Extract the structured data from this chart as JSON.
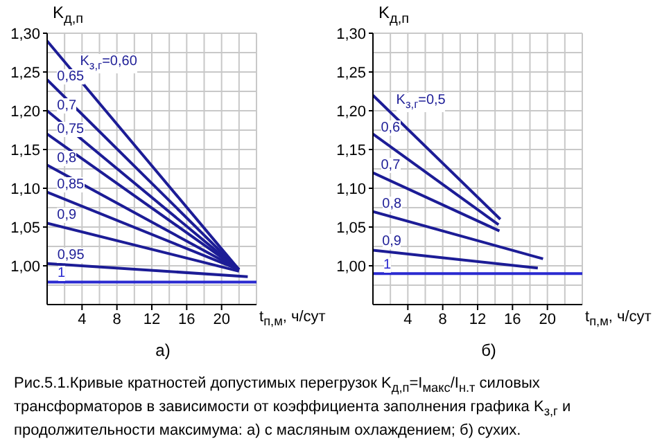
{
  "chart_data": [
    {
      "type": "line",
      "title": "а)",
      "xlabel": "t$_{п,м}$, ч/сут",
      "ylabel": "K$_{д,п}$",
      "xlim": [
        0,
        24
      ],
      "ylim": [
        0.95,
        1.3
      ],
      "xticks": [
        4,
        8,
        12,
        16,
        20
      ],
      "yticks": [
        {
          "value": 1.0,
          "label": "1,00"
        },
        {
          "value": 1.05,
          "label": "1,05"
        },
        {
          "value": 1.1,
          "label": "1,10"
        },
        {
          "value": 1.15,
          "label": "1,15"
        },
        {
          "value": 1.2,
          "label": "1,20"
        },
        {
          "value": 1.25,
          "label": "1,25"
        },
        {
          "value": 1.3,
          "label": "1,30"
        }
      ],
      "grid": true,
      "series": [
        {
          "name": "K$_{з,г}$=0,60",
          "color": "#1c1c96",
          "x": [
            0,
            22
          ],
          "values": [
            1.29,
            0.995
          ]
        },
        {
          "name": "0,65",
          "color": "#1c1c96",
          "x": [
            0,
            22
          ],
          "values": [
            1.24,
            0.995
          ]
        },
        {
          "name": "0,7",
          "color": "#1c1c96",
          "x": [
            0,
            22
          ],
          "values": [
            1.2,
            0.995
          ]
        },
        {
          "name": "0,75",
          "color": "#1c1c96",
          "x": [
            0,
            22
          ],
          "values": [
            1.17,
            0.995
          ]
        },
        {
          "name": "0,8",
          "color": "#1c1c96",
          "x": [
            0,
            22
          ],
          "values": [
            1.13,
            0.995
          ]
        },
        {
          "name": "0,85",
          "color": "#1c1c96",
          "x": [
            0,
            22
          ],
          "values": [
            1.095,
            0.995
          ]
        },
        {
          "name": "0,9",
          "color": "#1c1c96",
          "x": [
            0,
            22
          ],
          "values": [
            1.055,
            0.993
          ]
        },
        {
          "name": "0,95",
          "color": "#1c1c96",
          "x": [
            0,
            23
          ],
          "values": [
            1.003,
            0.986
          ]
        },
        {
          "name": "1",
          "color": "#2a2ad0",
          "x": [
            0,
            24
          ],
          "values": [
            0.979,
            0.979
          ]
        }
      ],
      "annotations": [
        "Рис.5.1.Кривые кратностей допустимых перегрузок K$_{д,п}$=I$_{макс}$/I$_{н.т}$ силовых трансформаторов в зависимости от коэффициента заполнения графика K$_{з,г}$ и продолжительности максимума: а) с масляным охлаждением; б) сухих."
      ]
    },
    {
      "type": "line",
      "title": "б)",
      "xlabel": "t$_{п,м}$, ч/сут",
      "ylabel": "K$_{д,п}$",
      "xlim": [
        0,
        24
      ],
      "ylim": [
        0.95,
        1.3
      ],
      "xticks": [
        4,
        8,
        12,
        16,
        20
      ],
      "yticks": [
        {
          "value": 1.0,
          "label": "1,00"
        },
        {
          "value": 1.05,
          "label": "1,05"
        },
        {
          "value": 1.1,
          "label": "1,10"
        },
        {
          "value": 1.15,
          "label": "1,15"
        },
        {
          "value": 1.2,
          "label": "1,20"
        },
        {
          "value": 1.25,
          "label": "1,25"
        },
        {
          "value": 1.3,
          "label": "1,30"
        }
      ],
      "grid": true,
      "series": [
        {
          "name": "K$_{з,г}$=0,5",
          "color": "#1c1c96",
          "x": [
            0,
            14.6
          ],
          "values": [
            1.22,
            1.06
          ]
        },
        {
          "name": "0,6",
          "color": "#1c1c96",
          "x": [
            0,
            14.4
          ],
          "values": [
            1.17,
            1.053
          ]
        },
        {
          "name": "0,7",
          "color": "#1c1c96",
          "x": [
            0,
            14.5
          ],
          "values": [
            1.12,
            1.045
          ]
        },
        {
          "name": "0,8",
          "color": "#1c1c96",
          "x": [
            0,
            19.5
          ],
          "values": [
            1.07,
            1.009
          ]
        },
        {
          "name": "0,9",
          "color": "#1c1c96",
          "x": [
            0,
            18.9
          ],
          "values": [
            1.02,
            0.997
          ]
        },
        {
          "name": "1",
          "color": "#2a2ad0",
          "x": [
            0,
            24
          ],
          "values": [
            0.99,
            0.99
          ]
        }
      ]
    }
  ]
}
